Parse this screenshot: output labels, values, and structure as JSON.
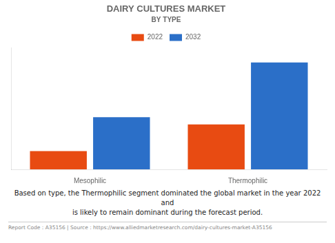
{
  "chart_data": {
    "type": "bar",
    "title": "DAIRY CULTURES MARKET",
    "subtitle": "BY TYPE",
    "categories": [
      "Mesophilic",
      "Thermophilic"
    ],
    "series": [
      {
        "name": "2022",
        "color": "#E84B12",
        "values": [
          0.15,
          0.37
        ]
      },
      {
        "name": "2032",
        "color": "#2B6FC8",
        "values": [
          0.43,
          0.88
        ]
      }
    ],
    "ylim": [
      0,
      1.0
    ],
    "yticks": [],
    "grid": false,
    "tick_labels": "x",
    "legend": "top",
    "annotations": [
      "Based on type, the Thermophilic segment dominated the global market in the year 2022 and\nis likely to remain dominant during the forecast period.",
      "Report Code : A35156  |  Source : https://www.alliedmarketresearch.com/dairy-cultures-market-A35156"
    ]
  }
}
